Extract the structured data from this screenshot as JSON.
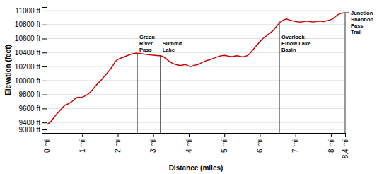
{
  "chart_data": {
    "type": "line",
    "xlabel": "Distance (miles)",
    "ylabel": "Elevation (feet)",
    "color": "#cc0000",
    "grid": "y",
    "xlim": [
      0,
      8.4
    ],
    "ylim": [
      9250,
      11050
    ],
    "xticks": [
      {
        "value": 0,
        "label": "0 mi"
      },
      {
        "value": 1,
        "label": "1 mi"
      },
      {
        "value": 2,
        "label": "2 mi"
      },
      {
        "value": 3,
        "label": "3 mi"
      },
      {
        "value": 4,
        "label": "4 mi"
      },
      {
        "value": 5,
        "label": "5 mi"
      },
      {
        "value": 6,
        "label": "6 mi"
      },
      {
        "value": 7,
        "label": "7 mi"
      },
      {
        "value": 8,
        "label": "8 mi"
      },
      {
        "value": 8.4,
        "label": "8.4 mi"
      }
    ],
    "yticks": [
      {
        "value": 9300,
        "label": "9300 ft"
      },
      {
        "value": 9400,
        "label": "9400 ft"
      },
      {
        "value": 9600,
        "label": "9600 ft"
      },
      {
        "value": 9800,
        "label": "9800 ft"
      },
      {
        "value": 10000,
        "label": "10000 ft"
      },
      {
        "value": 10200,
        "label": "10200 ft"
      },
      {
        "value": 10400,
        "label": "10400 ft"
      },
      {
        "value": 10600,
        "label": "10600 ft"
      },
      {
        "value": 10800,
        "label": "10800 ft"
      },
      {
        "value": 11000,
        "label": "11000 ft"
      }
    ],
    "annotations": [
      {
        "x": 2.55,
        "y": 10390,
        "label": "Green\nRiver\nPass"
      },
      {
        "x": 3.2,
        "y": 10355,
        "label": "Summit\nLake"
      },
      {
        "x": 6.55,
        "y": 10850,
        "label": "Overlook\nElbow Lake\nBasin"
      },
      {
        "x": 8.4,
        "y": 10970,
        "label": "Junction\nShannon\nPass\nTrail"
      }
    ],
    "x": [
      0.0,
      0.05,
      0.1,
      0.15,
      0.2,
      0.25,
      0.3,
      0.35,
      0.4,
      0.45,
      0.5,
      0.55,
      0.6,
      0.65,
      0.7,
      0.75,
      0.8,
      0.85,
      0.9,
      0.95,
      1.0,
      1.05,
      1.1,
      1.15,
      1.2,
      1.25,
      1.3,
      1.35,
      1.4,
      1.45,
      1.5,
      1.55,
      1.6,
      1.65,
      1.7,
      1.75,
      1.8,
      1.85,
      1.9,
      1.95,
      2.0,
      2.05,
      2.1,
      2.15,
      2.2,
      2.25,
      2.3,
      2.35,
      2.4,
      2.45,
      2.5,
      2.55,
      2.6,
      2.65,
      2.7,
      2.75,
      2.8,
      2.85,
      2.9,
      2.95,
      3.0,
      3.05,
      3.1,
      3.15,
      3.2,
      3.25,
      3.3,
      3.35,
      3.4,
      3.45,
      3.5,
      3.55,
      3.6,
      3.65,
      3.7,
      3.75,
      3.8,
      3.85,
      3.9,
      3.95,
      4.0,
      4.05,
      4.1,
      4.15,
      4.2,
      4.25,
      4.3,
      4.35,
      4.4,
      4.45,
      4.5,
      4.55,
      4.6,
      4.65,
      4.7,
      4.75,
      4.8,
      4.85,
      4.9,
      4.95,
      5.0,
      5.05,
      5.1,
      5.15,
      5.2,
      5.25,
      5.3,
      5.35,
      5.4,
      5.45,
      5.5,
      5.55,
      5.6,
      5.65,
      5.7,
      5.75,
      5.8,
      5.85,
      5.9,
      5.95,
      6.0,
      6.05,
      6.1,
      6.15,
      6.2,
      6.25,
      6.3,
      6.35,
      6.4,
      6.45,
      6.5,
      6.55,
      6.6,
      6.65,
      6.7,
      6.75,
      6.8,
      6.85,
      6.9,
      6.95,
      7.0,
      7.05,
      7.1,
      7.15,
      7.2,
      7.25,
      7.3,
      7.35,
      7.4,
      7.45,
      7.5,
      7.55,
      7.6,
      7.65,
      7.7,
      7.75,
      7.8,
      7.85,
      7.9,
      7.95,
      8.0,
      8.05,
      8.1,
      8.15,
      8.2,
      8.25,
      8.3,
      8.35,
      8.4
    ],
    "values": [
      9370,
      9385,
      9405,
      9435,
      9470,
      9500,
      9530,
      9558,
      9585,
      9615,
      9640,
      9655,
      9665,
      9678,
      9695,
      9715,
      9740,
      9755,
      9762,
      9755,
      9762,
      9772,
      9785,
      9800,
      9820,
      9845,
      9875,
      9905,
      9935,
      9965,
      9985,
      10015,
      10045,
      10075,
      10105,
      10135,
      10165,
      10205,
      10245,
      10280,
      10300,
      10312,
      10322,
      10332,
      10342,
      10352,
      10362,
      10372,
      10380,
      10386,
      10389,
      10390,
      10388,
      10384,
      10381,
      10377,
      10374,
      10370,
      10367,
      10364,
      10362,
      10360,
      10358,
      10356,
      10355,
      10348,
      10335,
      10315,
      10295,
      10275,
      10258,
      10245,
      10235,
      10225,
      10220,
      10215,
      10218,
      10224,
      10228,
      10220,
      10205,
      10200,
      10205,
      10215,
      10222,
      10228,
      10238,
      10252,
      10265,
      10275,
      10285,
      10292,
      10298,
      10308,
      10318,
      10328,
      10338,
      10346,
      10352,
      10356,
      10360,
      10356,
      10350,
      10346,
      10342,
      10344,
      10350,
      10354,
      10350,
      10344,
      10340,
      10342,
      10348,
      10358,
      10375,
      10405,
      10435,
      10465,
      10495,
      10525,
      10555,
      10582,
      10605,
      10625,
      10645,
      10665,
      10685,
      10705,
      10732,
      10762,
      10792,
      10820,
      10842,
      10860,
      10872,
      10880,
      10872,
      10862,
      10856,
      10850,
      10845,
      10841,
      10838,
      10836,
      10840,
      10845,
      10850,
      10848,
      10844,
      10840,
      10838,
      10840,
      10845,
      10850,
      10848,
      10844,
      10842,
      10850,
      10856,
      10862,
      10872,
      10882,
      10902,
      10922,
      10942,
      10956,
      10962,
      10966,
      10970
    ]
  }
}
